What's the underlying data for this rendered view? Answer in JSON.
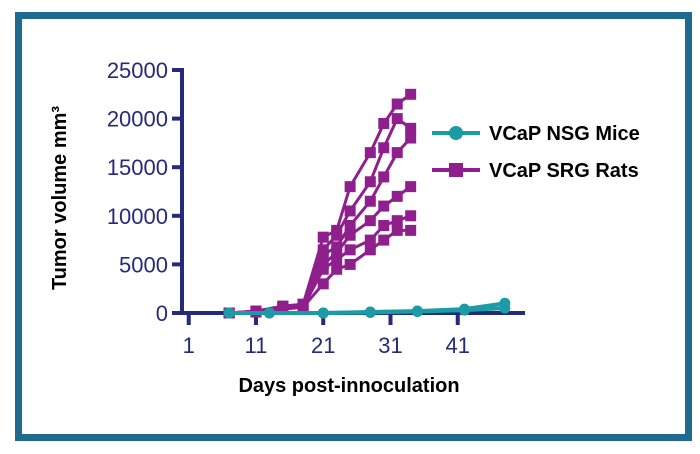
{
  "chart_data": {
    "type": "line",
    "title": "",
    "xlabel": "Days post-innoculation",
    "ylabel": "Tumor volume mm³",
    "xlim": [
      0,
      51
    ],
    "ylim": [
      0,
      25000
    ],
    "xticks": [
      1,
      11,
      21,
      31,
      41
    ],
    "yticks": [
      0,
      5000,
      10000,
      15000,
      20000,
      25000
    ],
    "legend": {
      "placement": "right",
      "entries": [
        "VCaP NSG Mice",
        "VCaP SRG Rats"
      ]
    },
    "colors": {
      "mice": "#1a9ba6",
      "rats": "#8e1f8c",
      "axis": "#252a7a",
      "frame": "#1e6b8f"
    },
    "series": [
      {
        "name": "VCaP NSG Mice",
        "group": "mice",
        "marker": "circle",
        "lines": [
          {
            "x": [
              7,
              13,
              21,
              28,
              35,
              42,
              48
            ],
            "y": [
              0,
              0,
              0,
              100,
              200,
              400,
              1000
            ]
          },
          {
            "x": [
              7,
              13,
              21,
              28,
              35,
              42,
              48
            ],
            "y": [
              0,
              0,
              0,
              50,
              150,
              300,
              500
            ]
          }
        ]
      },
      {
        "name": "VCaP SRG Rats",
        "group": "rats",
        "marker": "square",
        "lines": [
          {
            "x": [
              7,
              11,
              15,
              18,
              21,
              23,
              25,
              28,
              30,
              32,
              34
            ],
            "y": [
              0,
              200,
              700,
              900,
              7800,
              8500,
              13000,
              16500,
              19500,
              21500,
              22500
            ]
          },
          {
            "x": [
              7,
              11,
              15,
              18,
              21,
              23,
              25,
              28,
              30,
              32,
              34
            ],
            "y": [
              0,
              200,
              700,
              900,
              6500,
              8000,
              10500,
              13500,
              17000,
              20000,
              19000
            ]
          },
          {
            "x": [
              7,
              11,
              15,
              18,
              21,
              23,
              25,
              28,
              30,
              32,
              34
            ],
            "y": [
              0,
              150,
              600,
              800,
              6000,
              6800,
              9000,
              11500,
              14000,
              16500,
              18000
            ]
          },
          {
            "x": [
              7,
              11,
              15,
              18,
              21,
              23,
              25,
              28,
              30,
              32,
              34
            ],
            "y": [
              0,
              150,
              500,
              700,
              5000,
              6200,
              8000,
              9500,
              11000,
              12000,
              13000
            ]
          },
          {
            "x": [
              7,
              11,
              15,
              18,
              21,
              23,
              25,
              28,
              30,
              32,
              34
            ],
            "y": [
              0,
              100,
              500,
              600,
              4500,
              5500,
              6500,
              7500,
              9000,
              9500,
              10000
            ]
          },
          {
            "x": [
              7,
              11,
              15,
              18,
              21,
              23,
              25,
              28,
              30,
              32,
              34
            ],
            "y": [
              0,
              100,
              400,
              600,
              3000,
              4500,
              5000,
              6500,
              7500,
              8500,
              8500
            ]
          }
        ]
      }
    ]
  }
}
